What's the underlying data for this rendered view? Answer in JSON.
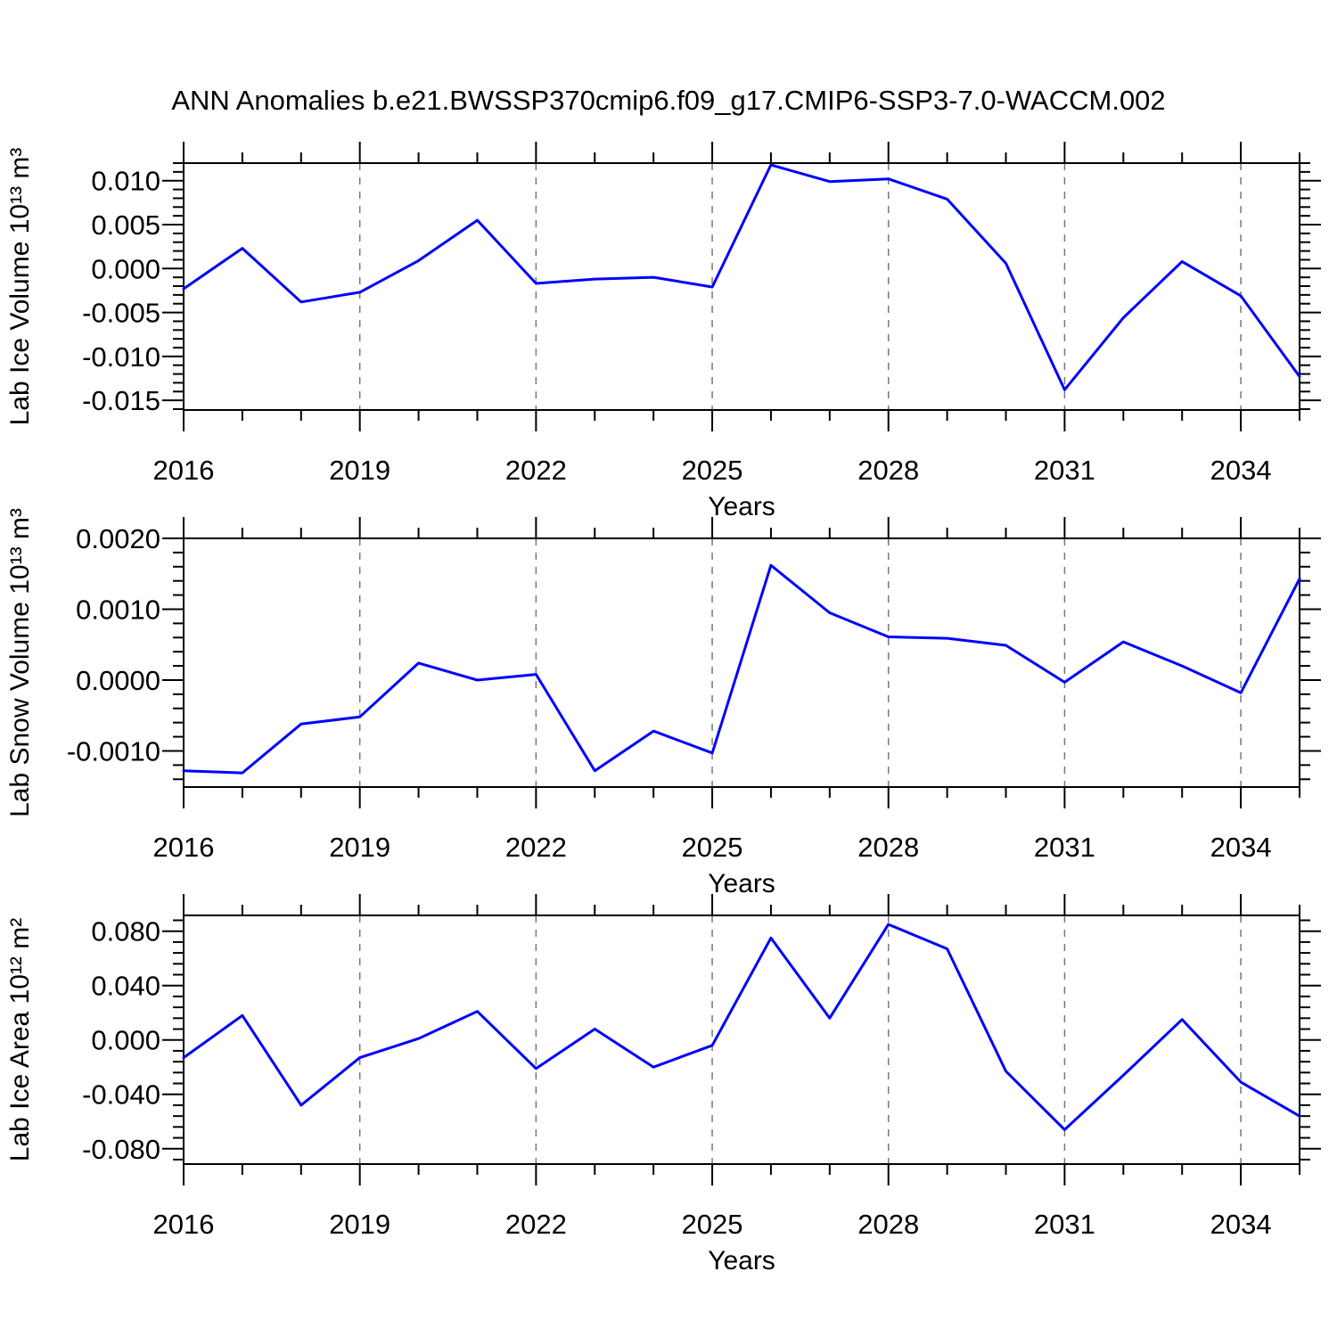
{
  "title": "ANN Anomalies b.e21.BWSSP370cmip6.f09_g17.CMIP6-SSP3-7.0-WACCM.002",
  "colors": {
    "line": "#0000ff",
    "axis": "#000000",
    "grid": "#777777",
    "text": "#000000",
    "background": "#ffffff"
  },
  "x_axis": {
    "label": "Years",
    "range": [
      2016,
      2035
    ],
    "major_ticks": [
      2016,
      2019,
      2022,
      2025,
      2028,
      2031,
      2034
    ],
    "major_tick_labels": [
      "2016",
      "2019",
      "2022",
      "2025",
      "2028",
      "2031",
      "2034"
    ],
    "gridline_years": [
      2019,
      2022,
      2025,
      2028,
      2031,
      2034
    ]
  },
  "chart_data": [
    {
      "type": "line",
      "ylabel": "Lab Ice Volume 10¹³ m³",
      "x": [
        2016,
        2017,
        2018,
        2019,
        2020,
        2021,
        2022,
        2023,
        2024,
        2025,
        2026,
        2027,
        2028,
        2029,
        2030,
        2031,
        2032,
        2033,
        2034,
        2035
      ],
      "values": [
        -0.0023,
        0.0023,
        -0.0038,
        -0.0027,
        0.0009,
        0.0055,
        -0.0017,
        -0.0012,
        -0.001,
        -0.0021,
        0.0118,
        0.0099,
        0.0102,
        0.0079,
        0.0006,
        -0.0138,
        -0.0056,
        0.0008,
        -0.0031,
        -0.0123
      ],
      "ylim": [
        -0.0161,
        0.012
      ],
      "ytick_values": [
        0.01,
        0.005,
        0.0,
        -0.005,
        -0.01,
        -0.015
      ],
      "ytick_labels": [
        "0.010",
        "0.005",
        "0.000",
        "-0.005",
        "-0.010",
        "-0.015"
      ],
      "minor_step": 0.001
    },
    {
      "type": "line",
      "ylabel": "Lab Snow Volume 10¹³ m³",
      "x": [
        2016,
        2017,
        2018,
        2019,
        2020,
        2021,
        2022,
        2023,
        2024,
        2025,
        2026,
        2027,
        2028,
        2029,
        2030,
        2031,
        2032,
        2033,
        2034,
        2035
      ],
      "values": [
        -0.00128,
        -0.00131,
        -0.00062,
        -0.00052,
        0.00024,
        0.0,
        8e-05,
        -0.00128,
        -0.00072,
        -0.00103,
        0.00162,
        0.00095,
        0.00061,
        0.00059,
        0.00049,
        -3e-05,
        0.00054,
        0.0002,
        -0.00018,
        0.00143
      ],
      "ylim": [
        -0.00151,
        0.002
      ],
      "ytick_values": [
        0.002,
        0.001,
        0.0,
        -0.001
      ],
      "ytick_labels": [
        "0.0020",
        "0.0010",
        "0.0000",
        "-0.0010"
      ],
      "minor_step": 0.0002
    },
    {
      "type": "line",
      "ylabel": "Lab Ice Area 10¹² m²",
      "x": [
        2016,
        2017,
        2018,
        2019,
        2020,
        2021,
        2022,
        2023,
        2024,
        2025,
        2026,
        2027,
        2028,
        2029,
        2030,
        2031,
        2032,
        2033,
        2034,
        2035
      ],
      "values": [
        -0.013,
        0.018,
        -0.048,
        -0.013,
        0.001,
        0.021,
        -0.021,
        0.008,
        -0.02,
        -0.004,
        0.075,
        0.016,
        0.085,
        0.067,
        -0.023,
        -0.066,
        -0.026,
        0.015,
        -0.031,
        -0.056
      ],
      "ylim": [
        -0.0913,
        0.0916
      ],
      "ytick_values": [
        0.08,
        0.04,
        0.0,
        -0.04,
        -0.08
      ],
      "ytick_labels": [
        "0.080",
        "0.040",
        "0.000",
        "-0.040",
        "-0.080"
      ],
      "minor_step": 0.008
    }
  ]
}
